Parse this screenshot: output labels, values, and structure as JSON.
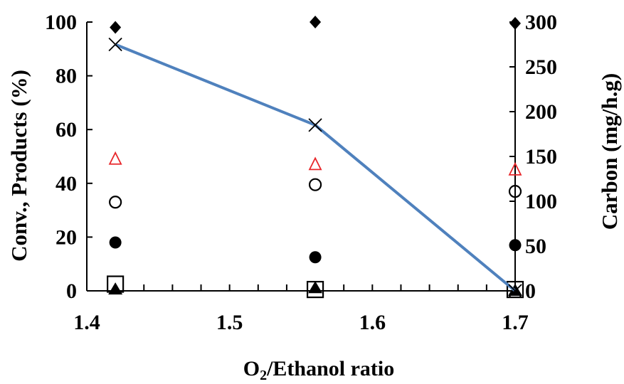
{
  "chart_data": {
    "type": "scatter",
    "xlabel": {
      "prefix": "O",
      "subscript": "2",
      "suffix": "/Ethanol ratio"
    },
    "ylabel_left": "Conv., Products (%)",
    "ylabel_right": "Carbon (mg/h.g)",
    "xlim": [
      1.4,
      1.7
    ],
    "ylim_left": [
      0,
      100
    ],
    "ylim_right": [
      0,
      300
    ],
    "x_ticks": [
      "1.4",
      "1.5",
      "1.6",
      "1.7"
    ],
    "y_left_ticks": [
      "0",
      "20",
      "40",
      "60",
      "80",
      "100"
    ],
    "y_right_ticks": [
      "0",
      "50",
      "100",
      "150",
      "200",
      "250",
      "300"
    ],
    "grid": false,
    "series": [
      {
        "marker": "diamond-filled",
        "color": "#000000",
        "axis": "left",
        "x": [
          1.42,
          1.56,
          1.7
        ],
        "y": [
          98,
          100,
          99.5
        ]
      },
      {
        "marker": "triangle-open",
        "color": "#e8262a",
        "axis": "left",
        "x": [
          1.42,
          1.56,
          1.7
        ],
        "y": [
          49,
          47,
          45
        ]
      },
      {
        "marker": "circle-open",
        "color": "#000000",
        "axis": "left",
        "x": [
          1.42,
          1.56,
          1.7
        ],
        "y": [
          33,
          39.5,
          37
        ]
      },
      {
        "marker": "circle-filled",
        "color": "#000000",
        "axis": "left",
        "x": [
          1.42,
          1.56,
          1.7
        ],
        "y": [
          18,
          12.5,
          17
        ]
      },
      {
        "marker": "square-open",
        "color": "#000000",
        "axis": "left",
        "x": [
          1.42,
          1.56,
          1.7
        ],
        "y": [
          2.5,
          0.5,
          0.5
        ]
      },
      {
        "marker": "triangle-filled",
        "color": "#000000",
        "axis": "left",
        "x": [
          1.42,
          1.56,
          1.7
        ],
        "y": [
          0.5,
          1,
          0
        ]
      },
      {
        "marker": "x",
        "line": true,
        "line_color": "#4f81bd",
        "color": "#000000",
        "axis": "right",
        "x": [
          1.42,
          1.56,
          1.7
        ],
        "y": [
          275,
          185,
          0
        ]
      }
    ]
  }
}
